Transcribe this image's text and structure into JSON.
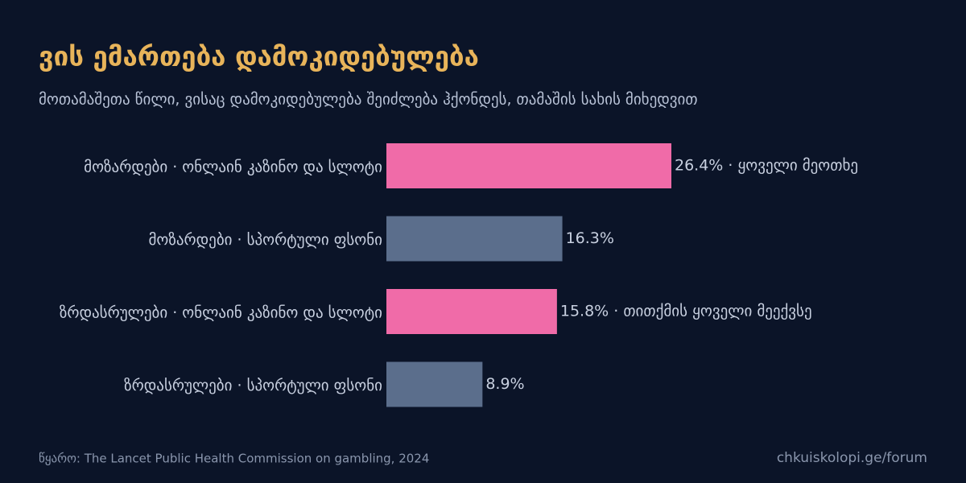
{
  "chart_data": {
    "type": "bar",
    "orientation": "horizontal",
    "title": "ვის ემართება დამოკიდებულება",
    "subtitle": "მოთამაშეთა წილი, ვისაც დამოკიდებულება შეიძლება ჰქონდეს, თამაშის სახის მიხედვით",
    "categories": [
      "მოზარდები · ონლაინ კაზინო და სლოტი",
      "მოზარდები · სპორტული ფსონი",
      "ზრდასრულები · ონლაინ კაზინო და სლოტი",
      "ზრდასრულები · სპორტული ფსონი"
    ],
    "values": [
      26.4,
      16.3,
      15.8,
      8.9
    ],
    "value_labels": [
      "26.4% · ყოველი მეოთხე",
      "16.3%",
      "15.8% · თითქმის ყოველი მეექვსე",
      "8.9%"
    ],
    "colors": [
      "#f06ba8",
      "#5b6e8c",
      "#f06ba8",
      "#5b6e8c"
    ],
    "source": "წყარო: The Lancet Public Health Commission on gambling, 2024",
    "site": "chkuiskolopi.ge/forum"
  }
}
